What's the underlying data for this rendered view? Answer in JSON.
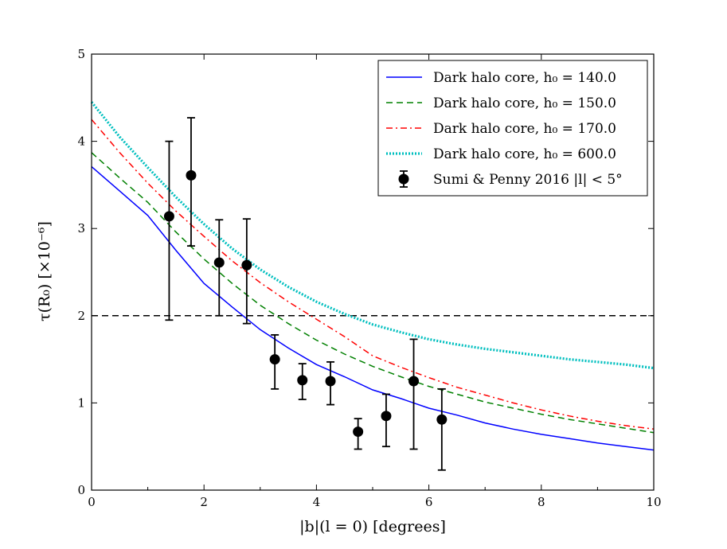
{
  "chart_data": {
    "type": "line",
    "title": "",
    "xlabel": "|b|(l = 0) [degrees]",
    "ylabel": "τ(R₀) [×10⁻⁶]",
    "xlim": [
      0,
      10
    ],
    "ylim": [
      0,
      5
    ],
    "xticks": [
      0,
      2,
      4,
      6,
      8,
      10
    ],
    "yticks": [
      0,
      1,
      2,
      3,
      4,
      5
    ],
    "xtick_labels": [
      "0",
      "2",
      "4",
      "6",
      "8",
      "10"
    ],
    "ytick_labels": [
      "0",
      "1",
      "2",
      "3",
      "4",
      "5"
    ],
    "grid": false,
    "legend_position": "top-right",
    "reference_line": {
      "y": 2.0,
      "style": "dashed",
      "color": "#000000"
    },
    "series": [
      {
        "name": "Dark halo core, h₀ = 140.0",
        "style": "solid",
        "color": "#0000ff",
        "x": [
          0,
          0.5,
          1,
          1.5,
          2,
          2.5,
          3,
          3.5,
          4,
          4.5,
          5,
          5.5,
          6,
          6.5,
          7,
          7.5,
          8,
          8.5,
          9,
          9.5,
          10
        ],
        "y": [
          3.71,
          3.43,
          3.15,
          2.75,
          2.37,
          2.1,
          1.84,
          1.63,
          1.44,
          1.3,
          1.15,
          1.05,
          0.94,
          0.86,
          0.77,
          0.7,
          0.64,
          0.59,
          0.54,
          0.5,
          0.46
        ]
      },
      {
        "name": "Dark halo core, h₀ = 150.0",
        "style": "dashed",
        "color": "#008000",
        "x": [
          0,
          0.5,
          1,
          1.5,
          2,
          2.5,
          3,
          3.5,
          4,
          4.5,
          5,
          5.5,
          6,
          6.5,
          7,
          7.5,
          8,
          8.5,
          9,
          9.5,
          10
        ],
        "y": [
          3.87,
          3.58,
          3.3,
          2.96,
          2.65,
          2.37,
          2.12,
          1.91,
          1.72,
          1.56,
          1.42,
          1.3,
          1.19,
          1.1,
          1.01,
          0.94,
          0.87,
          0.81,
          0.76,
          0.71,
          0.66
        ]
      },
      {
        "name": "Dark halo core, h₀ = 170.0",
        "style": "dashdot",
        "color": "#ff0000",
        "x": [
          0,
          0.5,
          1,
          1.5,
          2,
          2.5,
          3,
          3.5,
          4,
          4.5,
          5,
          5.5,
          6,
          6.5,
          7,
          7.5,
          8,
          8.5,
          9,
          9.5,
          10
        ],
        "y": [
          4.25,
          3.87,
          3.52,
          3.2,
          2.91,
          2.63,
          2.38,
          2.16,
          1.96,
          1.76,
          1.54,
          1.41,
          1.29,
          1.18,
          1.09,
          1.0,
          0.92,
          0.85,
          0.79,
          0.74,
          0.7
        ]
      },
      {
        "name": "Dark halo core, h₀ = 600.0",
        "style": "dotted",
        "color": "#00bfbf",
        "x": [
          0,
          0.5,
          1,
          1.5,
          2,
          2.5,
          3,
          3.5,
          4,
          4.5,
          5,
          5.5,
          6,
          6.5,
          7,
          7.5,
          8,
          8.5,
          9,
          9.5,
          10
        ],
        "y": [
          4.45,
          4.05,
          3.7,
          3.36,
          3.05,
          2.77,
          2.53,
          2.33,
          2.16,
          2.02,
          1.9,
          1.81,
          1.73,
          1.67,
          1.62,
          1.58,
          1.54,
          1.5,
          1.47,
          1.44,
          1.4
        ]
      }
    ],
    "errorbar_series": {
      "name": "Sumi & Penny 2016 |l| < 5°",
      "color": "#000000",
      "marker": "circle",
      "points": [
        {
          "x": 1.38,
          "y": 3.14,
          "ylo": 1.95,
          "yhi": 4.0
        },
        {
          "x": 1.77,
          "y": 3.61,
          "ylo": 2.8,
          "yhi": 4.27
        },
        {
          "x": 2.27,
          "y": 2.61,
          "ylo": 2.0,
          "yhi": 3.1
        },
        {
          "x": 2.76,
          "y": 2.58,
          "ylo": 1.91,
          "yhi": 3.11
        },
        {
          "x": 3.26,
          "y": 1.5,
          "ylo": 1.16,
          "yhi": 1.78
        },
        {
          "x": 3.75,
          "y": 1.26,
          "ylo": 1.04,
          "yhi": 1.45
        },
        {
          "x": 4.25,
          "y": 1.25,
          "ylo": 0.98,
          "yhi": 1.47
        },
        {
          "x": 4.74,
          "y": 0.67,
          "ylo": 0.47,
          "yhi": 0.82
        },
        {
          "x": 5.24,
          "y": 0.85,
          "ylo": 0.5,
          "yhi": 1.1
        },
        {
          "x": 5.73,
          "y": 1.25,
          "ylo": 0.47,
          "yhi": 1.73
        },
        {
          "x": 6.23,
          "y": 0.81,
          "ylo": 0.23,
          "yhi": 1.16
        }
      ]
    },
    "legend_entries": [
      "Dark halo core,  h₀ = 140.0",
      "Dark halo core,  h₀ = 150.0",
      "Dark halo core,  h₀ = 170.0",
      "Dark halo core,  h₀ = 600.0",
      "Sumi & Penny 2016 |l| < 5°"
    ]
  }
}
